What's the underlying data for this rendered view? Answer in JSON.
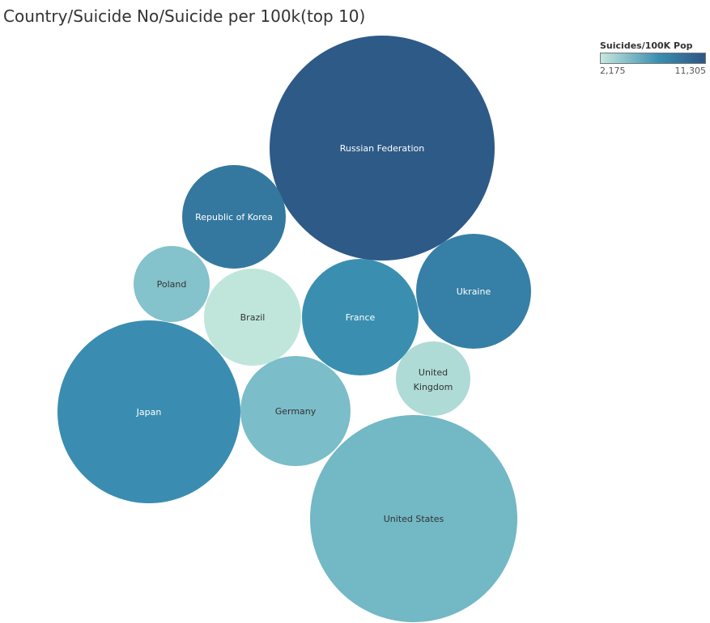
{
  "chart_data": {
    "type": "bubble",
    "title": "Country/Suicide No/Suicide per 100k(top 10)",
    "legend": {
      "title": "Suicides/100K Pop",
      "min_label": "2,175",
      "max_label": "11,305",
      "min": 2175,
      "max": 11305,
      "color_low": "#c6e8df",
      "color_mid": "#3b8fb0",
      "color_high": "#2d5685",
      "placement": "top-right"
    },
    "items": [
      {
        "name": "Russian Federation",
        "color": "#2e5a87",
        "text_color": "#ffffff"
      },
      {
        "name": "United States",
        "color": "#72b8c5",
        "text_color": "#333333"
      },
      {
        "name": "Japan",
        "color": "#3a8db0",
        "text_color": "#ffffff"
      },
      {
        "name": "France",
        "color": "#3a8fb0",
        "text_color": "#ffffff"
      },
      {
        "name": "Ukraine",
        "color": "#367fa6",
        "text_color": "#ffffff"
      },
      {
        "name": "Germany",
        "color": "#7bbdc8",
        "text_color": "#333333"
      },
      {
        "name": "Republic of Korea",
        "color": "#34789f",
        "text_color": "#ffffff"
      },
      {
        "name": "Brazil",
        "color": "#c0e6dc",
        "text_color": "#333333"
      },
      {
        "name": "Poland",
        "color": "#84c2cc",
        "text_color": "#333333"
      },
      {
        "name": "United Kingdom",
        "color": "#aedbd5",
        "text_color": "#333333"
      }
    ]
  }
}
